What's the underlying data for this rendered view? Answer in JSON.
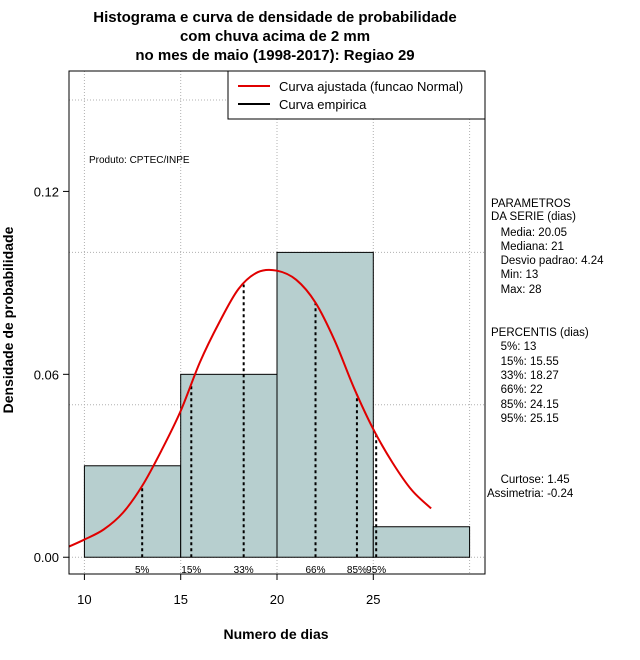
{
  "chart_data": {
    "type": "bar",
    "title": [
      "Histograma e curva de densidade de probabilidade",
      "com chuva acima de 2 mm",
      "no mes de maio (1998-2017): Regiao 29"
    ],
    "xlabel": "Numero de dias",
    "ylabel": "Densidade de probabilidade",
    "xlim": [
      9.2,
      30.8
    ],
    "ylim": [
      -0.0055,
      0.1595
    ],
    "xticks": [
      10,
      15,
      20,
      25
    ],
    "yticks": [
      0.0,
      0.06,
      0.12
    ],
    "ytick_labels": [
      "0.00",
      "0.06",
      "0.12"
    ],
    "grid_x": [
      10,
      15,
      20,
      25,
      30
    ],
    "grid_y": [
      0.0,
      0.05,
      0.1,
      0.15
    ],
    "bins": [
      {
        "x0": 10,
        "x1": 15,
        "density": 0.03
      },
      {
        "x0": 15,
        "x1": 20,
        "density": 0.06
      },
      {
        "x0": 20,
        "x1": 25,
        "density": 0.1
      },
      {
        "x0": 25,
        "x1": 30,
        "density": 0.01
      }
    ],
    "bar_color": "#b7cfcf",
    "normal_curve": {
      "name": "Curva ajustada (funcao Normal)",
      "color": "#e00000",
      "x": [
        9.2,
        10,
        11,
        12,
        13,
        14,
        15,
        16,
        17,
        18,
        19,
        20,
        21,
        22,
        23,
        24,
        25,
        26,
        27,
        28
      ],
      "y": [
        0.0035,
        0.0058,
        0.0091,
        0.0146,
        0.0234,
        0.035,
        0.048,
        0.064,
        0.077,
        0.088,
        0.0935,
        0.094,
        0.091,
        0.0835,
        0.071,
        0.0555,
        0.042,
        0.031,
        0.022,
        0.016
      ]
    },
    "empirical_curve": {
      "name": "Curva empirica",
      "color": "#000000"
    },
    "percentiles": [
      {
        "label": "5%",
        "x": 13
      },
      {
        "label": "15%",
        "x": 15.55
      },
      {
        "label": "33%",
        "x": 18.27
      },
      {
        "label": "66%",
        "x": 22
      },
      {
        "label": "85%",
        "x": 24.15
      },
      {
        "label": "95%",
        "x": 25.15
      }
    ],
    "credit": "Produto: CPTEC/INPE",
    "legend_position": "top-right"
  },
  "side_panel": {
    "params_lines": [
      "PARAMETROS",
      "DA SERIE (dias)",
      "   Media: 20.05",
      "   Mediana: 21",
      "   Desvio padrao: 4.24",
      "   Min: 13",
      "   Max: 28"
    ],
    "percentis_lines": [
      "PERCENTIS (dias)",
      "   5%: 13",
      "   15%: 15.55",
      "   33%: 18.27",
      "   66%: 22",
      "   85%: 24.15",
      "   95%: 25.15"
    ],
    "stats_lines": [
      "   Curtose: 1.45",
      "Assimetria: -0.24"
    ]
  }
}
